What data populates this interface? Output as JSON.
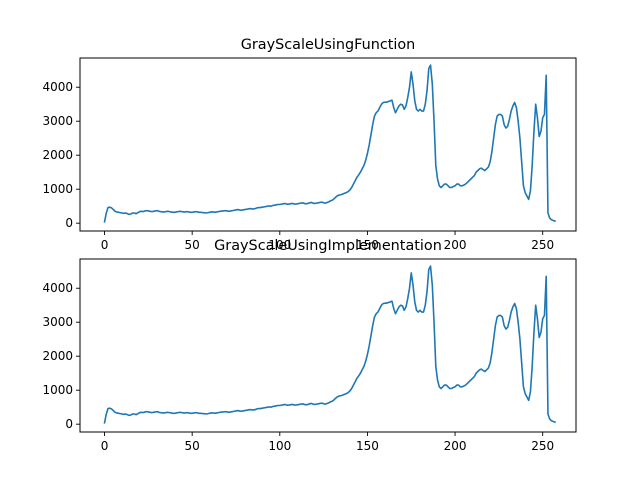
{
  "chart_data": [
    {
      "type": "line",
      "title": "GrayScaleUsingFunction",
      "xlabel": "",
      "ylabel": "",
      "xlim": [
        -14,
        269
      ],
      "ylim": [
        -230,
        4860
      ],
      "xticks": [
        0,
        50,
        100,
        150,
        200,
        250
      ],
      "yticks": [
        0,
        1000,
        2000,
        3000,
        4000
      ],
      "grid": false,
      "series_color": "#1f77b4",
      "x_start": 0,
      "x_step": 1,
      "values": [
        40,
        300,
        460,
        470,
        450,
        400,
        350,
        330,
        320,
        310,
        300,
        290,
        300,
        280,
        260,
        270,
        300,
        300,
        280,
        310,
        340,
        350,
        340,
        360,
        370,
        360,
        350,
        340,
        350,
        360,
        370,
        350,
        340,
        330,
        330,
        340,
        350,
        340,
        330,
        320,
        320,
        330,
        340,
        350,
        340,
        330,
        330,
        340,
        330,
        320,
        320,
        330,
        340,
        330,
        320,
        320,
        310,
        310,
        300,
        310,
        320,
        330,
        330,
        320,
        330,
        340,
        350,
        360,
        360,
        370,
        360,
        350,
        360,
        370,
        380,
        390,
        400,
        390,
        380,
        390,
        400,
        410,
        420,
        430,
        420,
        420,
        430,
        450,
        460,
        460,
        470,
        480,
        490,
        500,
        510,
        500,
        520,
        530,
        540,
        550,
        550,
        560,
        570,
        580,
        560,
        560,
        570,
        580,
        570,
        560,
        570,
        580,
        590,
        600,
        580,
        570,
        580,
        600,
        610,
        590,
        580,
        590,
        600,
        610,
        620,
        600,
        590,
        610,
        630,
        660,
        680,
        720,
        770,
        810,
        830,
        840,
        860,
        880,
        900,
        930,
        980,
        1050,
        1150,
        1250,
        1350,
        1420,
        1500,
        1600,
        1700,
        1850,
        2050,
        2300,
        2600,
        2900,
        3150,
        3250,
        3300,
        3400,
        3500,
        3550,
        3560,
        3560,
        3580,
        3600,
        3620,
        3400,
        3250,
        3350,
        3450,
        3500,
        3480,
        3350,
        3450,
        3700,
        4000,
        4450,
        4100,
        3600,
        3350,
        3300,
        3350,
        3300,
        3300,
        3500,
        3900,
        4550,
        4650,
        4100,
        3000,
        1700,
        1300,
        1100,
        1050,
        1100,
        1150,
        1150,
        1100,
        1050,
        1050,
        1080,
        1100,
        1150,
        1150,
        1100,
        1100,
        1120,
        1150,
        1200,
        1250,
        1300,
        1350,
        1400,
        1500,
        1550,
        1600,
        1620,
        1580,
        1550,
        1600,
        1650,
        1800,
        2100,
        2500,
        2900,
        3150,
        3200,
        3200,
        3150,
        2900,
        2800,
        2850,
        3050,
        3300,
        3450,
        3550,
        3400,
        3000,
        2500,
        1800,
        1100,
        900,
        800,
        700,
        950,
        1700,
        2700,
        3500,
        3100,
        2550,
        2700,
        3100,
        3200,
        4350,
        300,
        150,
        100,
        80,
        60
      ]
    },
    {
      "type": "line",
      "title": "GrayScaleUsingImplementation",
      "xlabel": "",
      "ylabel": "",
      "xlim": [
        -14,
        269
      ],
      "ylim": [
        -230,
        4860
      ],
      "xticks": [
        0,
        50,
        100,
        150,
        200,
        250
      ],
      "yticks": [
        0,
        1000,
        2000,
        3000,
        4000
      ],
      "grid": false,
      "series_color": "#1f77b4",
      "x_start": 0,
      "x_step": 1,
      "values": [
        40,
        300,
        460,
        470,
        450,
        400,
        350,
        330,
        320,
        310,
        300,
        290,
        300,
        280,
        260,
        270,
        300,
        300,
        280,
        310,
        340,
        350,
        340,
        360,
        370,
        360,
        350,
        340,
        350,
        360,
        370,
        350,
        340,
        330,
        330,
        340,
        350,
        340,
        330,
        320,
        320,
        330,
        340,
        350,
        340,
        330,
        330,
        340,
        330,
        320,
        320,
        330,
        340,
        330,
        320,
        320,
        310,
        310,
        300,
        310,
        320,
        330,
        330,
        320,
        330,
        340,
        350,
        360,
        360,
        370,
        360,
        350,
        360,
        370,
        380,
        390,
        400,
        390,
        380,
        390,
        400,
        410,
        420,
        430,
        420,
        420,
        430,
        450,
        460,
        460,
        470,
        480,
        490,
        500,
        510,
        500,
        520,
        530,
        540,
        550,
        550,
        560,
        570,
        580,
        560,
        560,
        570,
        580,
        570,
        560,
        570,
        580,
        590,
        600,
        580,
        570,
        580,
        600,
        610,
        590,
        580,
        590,
        600,
        610,
        620,
        600,
        590,
        610,
        630,
        660,
        680,
        720,
        770,
        810,
        830,
        840,
        860,
        880,
        900,
        930,
        980,
        1050,
        1150,
        1250,
        1350,
        1420,
        1500,
        1600,
        1700,
        1850,
        2050,
        2300,
        2600,
        2900,
        3150,
        3250,
        3300,
        3400,
        3500,
        3550,
        3560,
        3560,
        3580,
        3600,
        3620,
        3400,
        3250,
        3350,
        3450,
        3500,
        3480,
        3350,
        3450,
        3700,
        4000,
        4450,
        4100,
        3600,
        3350,
        3300,
        3350,
        3300,
        3300,
        3500,
        3900,
        4550,
        4650,
        4100,
        3000,
        1700,
        1300,
        1100,
        1050,
        1100,
        1150,
        1150,
        1100,
        1050,
        1050,
        1080,
        1100,
        1150,
        1150,
        1100,
        1100,
        1120,
        1150,
        1200,
        1250,
        1300,
        1350,
        1400,
        1500,
        1550,
        1600,
        1620,
        1580,
        1550,
        1600,
        1650,
        1800,
        2100,
        2500,
        2900,
        3150,
        3200,
        3200,
        3150,
        2900,
        2800,
        2850,
        3050,
        3300,
        3450,
        3550,
        3400,
        3000,
        2500,
        1800,
        1100,
        900,
        800,
        700,
        950,
        1700,
        2700,
        3500,
        3100,
        2550,
        2700,
        3100,
        3200,
        4350,
        300,
        150,
        100,
        80,
        60
      ]
    }
  ]
}
